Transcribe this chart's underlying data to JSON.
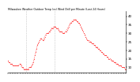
{
  "title": "Milwaukee Weather Outdoor Temp (vs) Wind Chill per Minute (Last 24 Hours)",
  "line_color": "#ff0000",
  "bg_color": "#ffffff",
  "ylim": [
    7,
    43
  ],
  "yticks": [
    10,
    15,
    20,
    25,
    30,
    35,
    40
  ],
  "vline_color": "#aaaaaa",
  "vlines_x": [
    22,
    57
  ],
  "y_values": [
    14,
    13,
    13,
    12,
    12,
    12,
    11,
    11,
    11,
    11,
    11,
    11,
    11,
    11,
    12,
    12,
    11,
    10,
    10,
    9,
    9,
    9,
    9,
    9,
    9,
    9,
    10,
    10,
    10,
    11,
    12,
    13,
    15,
    17,
    19,
    21,
    23,
    24,
    25,
    26,
    27,
    27,
    26,
    26,
    27,
    28,
    29,
    30,
    30,
    30,
    31,
    31,
    32,
    33,
    33,
    33,
    34,
    34,
    34,
    33,
    33,
    33,
    32,
    31,
    31,
    31,
    31,
    30,
    30,
    30,
    31,
    31,
    32,
    33,
    34,
    35,
    36,
    36,
    37,
    37,
    38,
    38,
    38,
    38,
    37,
    37,
    36,
    36,
    35,
    34,
    33,
    32,
    31,
    30,
    29,
    28,
    27,
    26,
    26,
    25,
    25,
    25,
    24,
    24,
    24,
    23,
    23,
    22,
    22,
    22,
    21,
    21,
    20,
    20,
    19,
    19,
    18,
    18,
    17,
    17,
    17,
    16,
    16,
    15,
    15,
    15,
    14,
    14,
    14,
    13,
    13,
    13,
    12,
    12,
    12,
    11,
    11,
    11,
    11,
    10,
    10,
    10,
    10,
    9,
    9
  ]
}
